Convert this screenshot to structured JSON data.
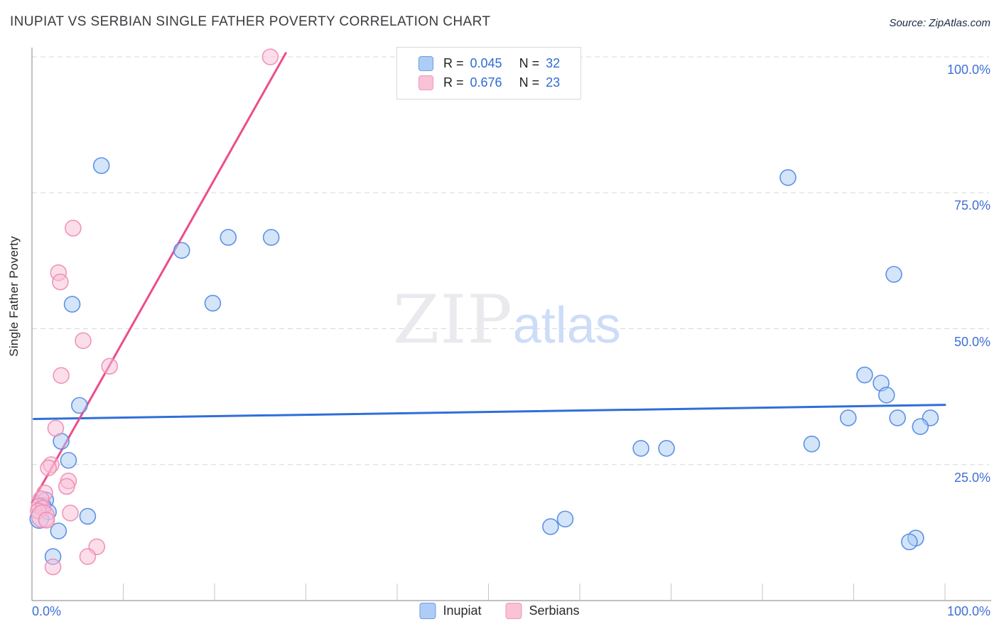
{
  "title": "INUPIAT VS SERBIAN SINGLE FATHER POVERTY CORRELATION CHART",
  "source": "Source: ZipAtlas.com",
  "watermark": {
    "part1": "ZIP",
    "part2": "atlas"
  },
  "legend_box": {
    "rows": [
      {
        "series": "Inupiat",
        "r_label": "R =",
        "r_value": "0.045",
        "n_label": "N =",
        "n_value": "32"
      },
      {
        "series": "Serbians",
        "r_label": "R =",
        "r_value": "0.676",
        "n_label": "N =",
        "n_value": "23"
      }
    ]
  },
  "axis": {
    "y_title": "Single Father Poverty",
    "x_left_label": "0.0%",
    "x_right_label": "100.0%"
  },
  "y_axis_labels": [
    {
      "text": "100.0%",
      "value": 100
    },
    {
      "text": "75.0%",
      "value": 75
    },
    {
      "text": "50.0%",
      "value": 50
    },
    {
      "text": "25.0%",
      "value": 25
    }
  ],
  "series_legend": {
    "items": [
      {
        "label": "Inupiat"
      },
      {
        "label": "Serbians"
      }
    ]
  },
  "colors": {
    "blue_fill": "#a9ccf6",
    "blue_stroke": "#4f86e3",
    "blue_line": "#2e6fd8",
    "pink_fill": "#f9bed7",
    "pink_stroke": "#ee8bb0",
    "pink_line": "#ec4d8b",
    "label_blue": "#3e6fd6",
    "grid": "#d8d8d8",
    "axis": "#9a9a9a",
    "tick": "#c6c6c6",
    "title": "#3b3b40",
    "watermark_zip": "#e9e9ee",
    "watermark_atlas": "#cdddf8"
  },
  "chart_data": {
    "type": "scatter",
    "title": "INUPIAT VS SERBIAN SINGLE FATHER POVERTY CORRELATION CHART",
    "xlabel": "",
    "ylabel": "Single Father Poverty",
    "xlim": [
      0,
      100
    ],
    "ylim": [
      0,
      100
    ],
    "grid": "dashed horizontal at 25/50/75/100",
    "legend_position": "top-center and bottom-center",
    "x_tick_percents": [
      10,
      20,
      30,
      40,
      50,
      60,
      70,
      80,
      90,
      100
    ],
    "y_gridline_percents": [
      25,
      50,
      75,
      100
    ],
    "series": [
      {
        "name": "Inupiat",
        "R": 0.045,
        "N": 32,
        "points": [
          [
            7.6,
            80
          ],
          [
            82.8,
            77.8
          ],
          [
            21.5,
            66.8
          ],
          [
            26.2,
            66.8
          ],
          [
            16.4,
            64.4
          ],
          [
            94.4,
            60
          ],
          [
            19.8,
            54.7
          ],
          [
            4.4,
            54.5
          ],
          [
            91.2,
            41.5
          ],
          [
            93,
            40
          ],
          [
            93.6,
            37.8
          ],
          [
            5.2,
            35.9
          ],
          [
            89.4,
            33.6
          ],
          [
            94.8,
            33.6
          ],
          [
            98.4,
            33.6
          ],
          [
            97.3,
            32
          ],
          [
            3.2,
            29.3
          ],
          [
            85.4,
            28.8
          ],
          [
            66.7,
            28
          ],
          [
            69.5,
            28
          ],
          [
            4,
            25.8
          ],
          [
            1.5,
            18.5
          ],
          [
            1.2,
            17.5
          ],
          [
            1.8,
            16.3
          ],
          [
            6.1,
            15.5
          ],
          [
            0.8,
            15,
            13
          ],
          [
            58.4,
            15
          ],
          [
            56.8,
            13.6
          ],
          [
            2.9,
            12.8
          ],
          [
            96.8,
            11.5
          ],
          [
            96.1,
            10.8
          ],
          [
            2.3,
            8.1
          ]
        ]
      },
      {
        "name": "Serbians",
        "R": 0.676,
        "N": 23,
        "points": [
          [
            26.1,
            100
          ],
          [
            4.5,
            68.5
          ],
          [
            2.9,
            60.3
          ],
          [
            3.1,
            58.6
          ],
          [
            5.6,
            47.8
          ],
          [
            8.5,
            43.1
          ],
          [
            3.2,
            41.4
          ],
          [
            2.6,
            31.7
          ],
          [
            2.1,
            25
          ],
          [
            1.8,
            24.4
          ],
          [
            4,
            22
          ],
          [
            3.8,
            21
          ],
          [
            1.4,
            19.8
          ],
          [
            1,
            18.7
          ],
          [
            0.8,
            17.4
          ],
          [
            1.2,
            17
          ],
          [
            0.7,
            16.5
          ],
          [
            4.2,
            16.1
          ],
          [
            1.2,
            15.5,
            16
          ],
          [
            1.6,
            14.8
          ],
          [
            7.1,
            9.9
          ],
          [
            6.1,
            8.1
          ],
          [
            2.3,
            6.2
          ]
        ]
      }
    ],
    "trendlines": [
      {
        "series": "Inupiat",
        "from": [
          0.2,
          33.4
        ],
        "to": [
          100,
          36
        ]
      },
      {
        "series": "Serbians",
        "from": [
          0,
          18
        ],
        "to": [
          27.8,
          100.7
        ]
      }
    ]
  }
}
